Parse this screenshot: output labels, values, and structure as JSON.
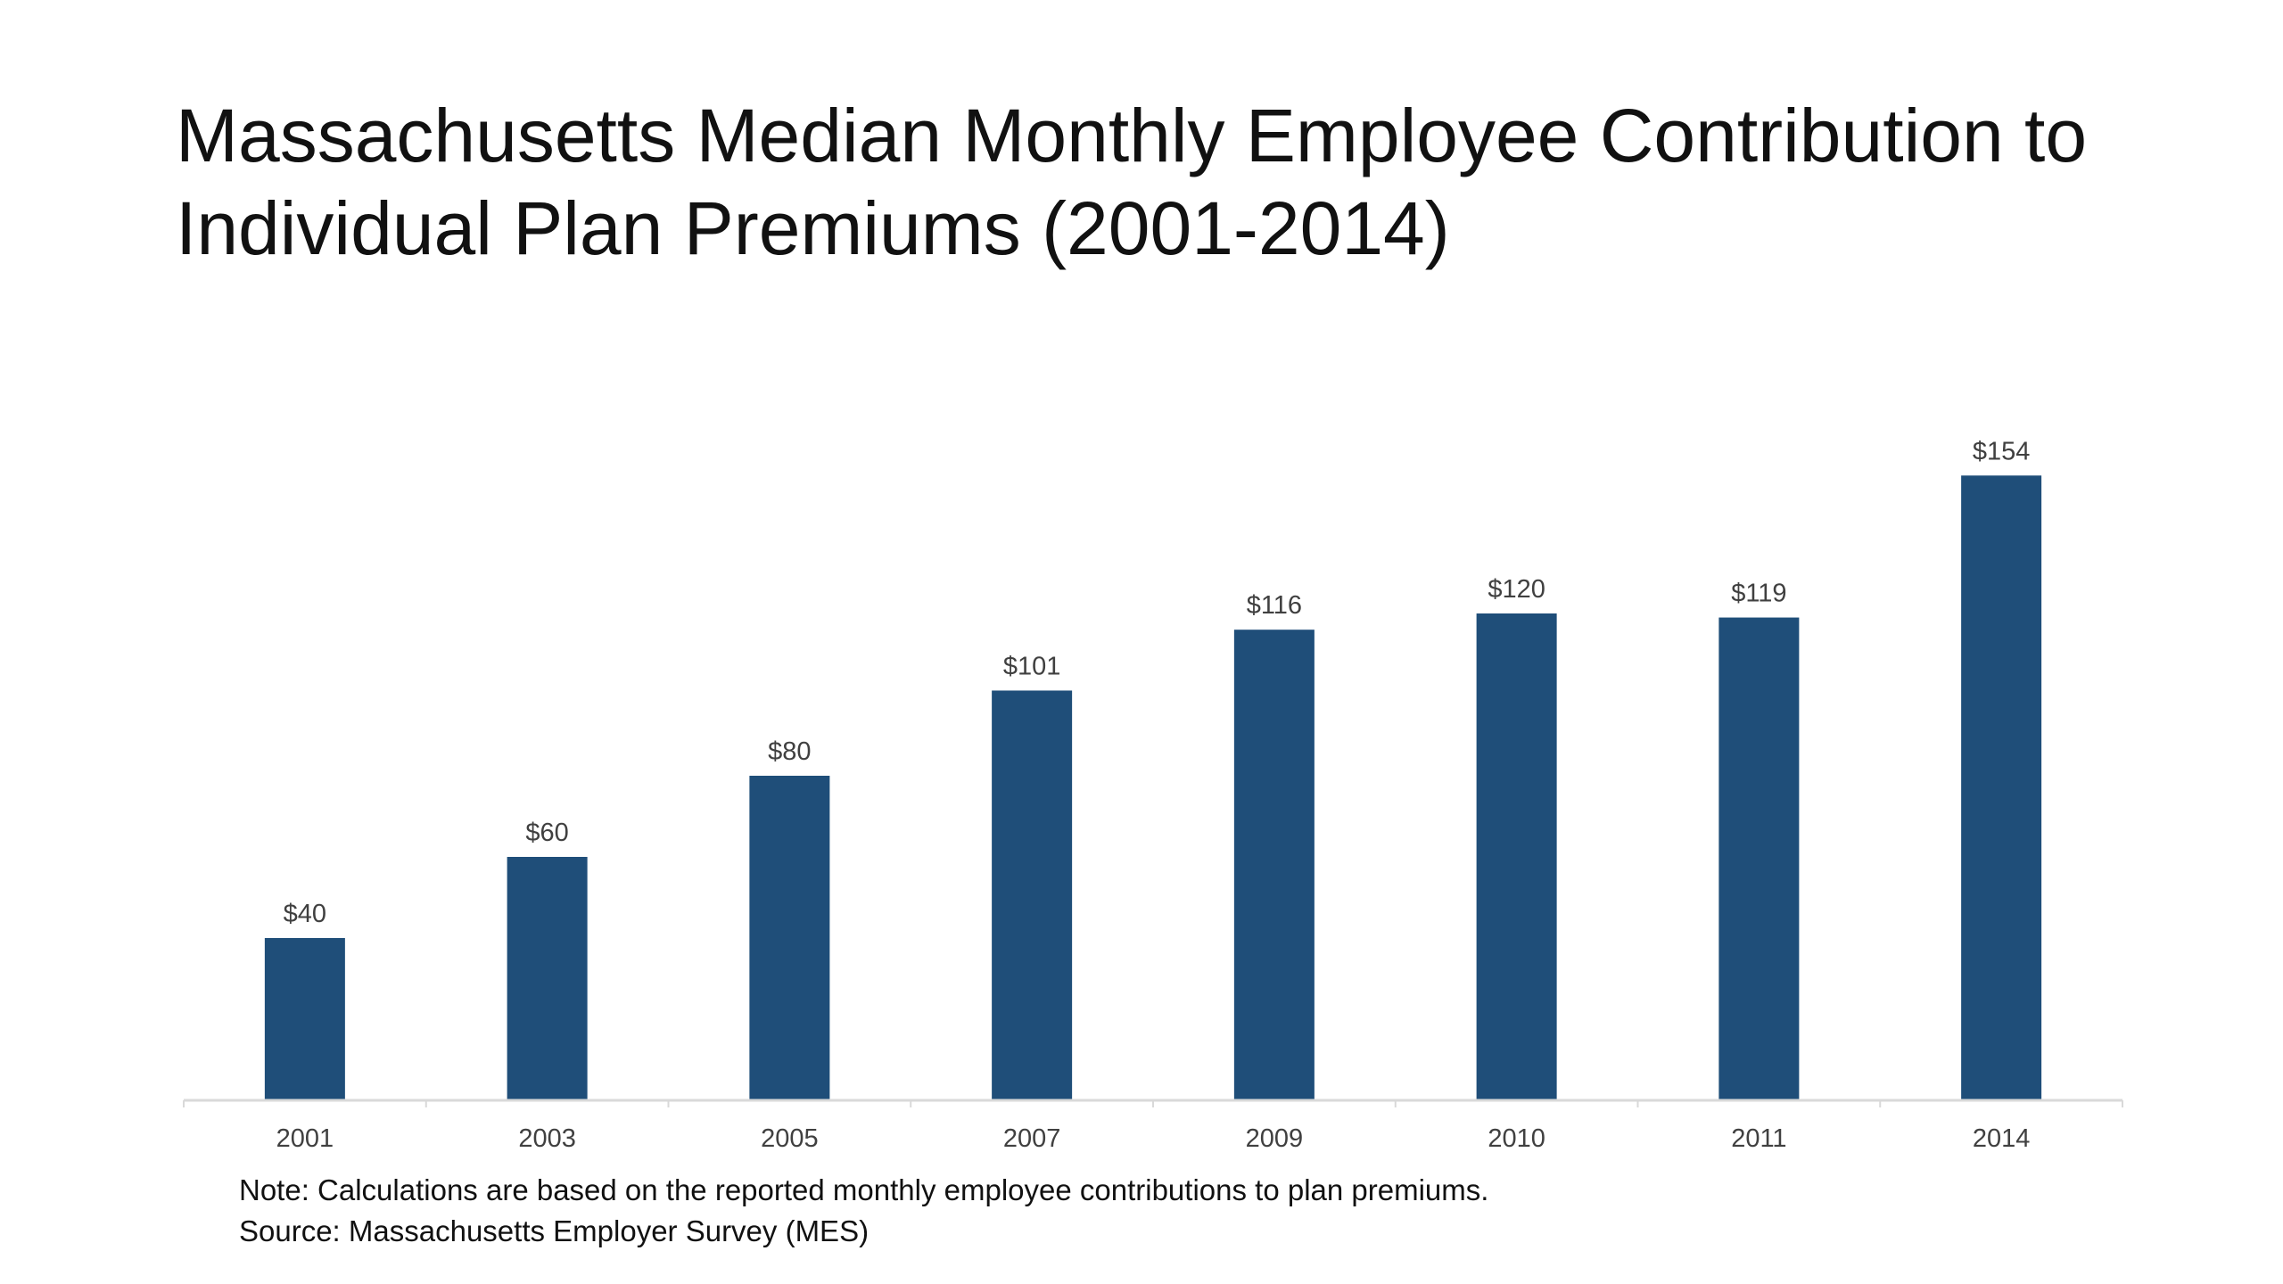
{
  "chart_data": {
    "type": "bar",
    "title": "Massachusetts Median Monthly Employee Contribution to Individual Plan Premiums (2001-2014)",
    "xlabel": "",
    "ylabel": "",
    "categories": [
      "2001",
      "2003",
      "2005",
      "2007",
      "2009",
      "2010",
      "2011",
      "2014"
    ],
    "values": [
      40,
      60,
      80,
      101,
      116,
      120,
      119,
      154
    ],
    "data_labels": [
      "$40",
      "$60",
      "$80",
      "$101",
      "$116",
      "$120",
      "$119",
      "$154"
    ],
    "ylim": [
      0,
      160
    ],
    "grid": false,
    "legend": "none",
    "bar_color": "#1f4e79"
  },
  "notes": {
    "note": "Note: Calculations are based on the reported monthly employee contributions to plan premiums.",
    "source": "Source: Massachusetts Employer Survey (MES)"
  }
}
